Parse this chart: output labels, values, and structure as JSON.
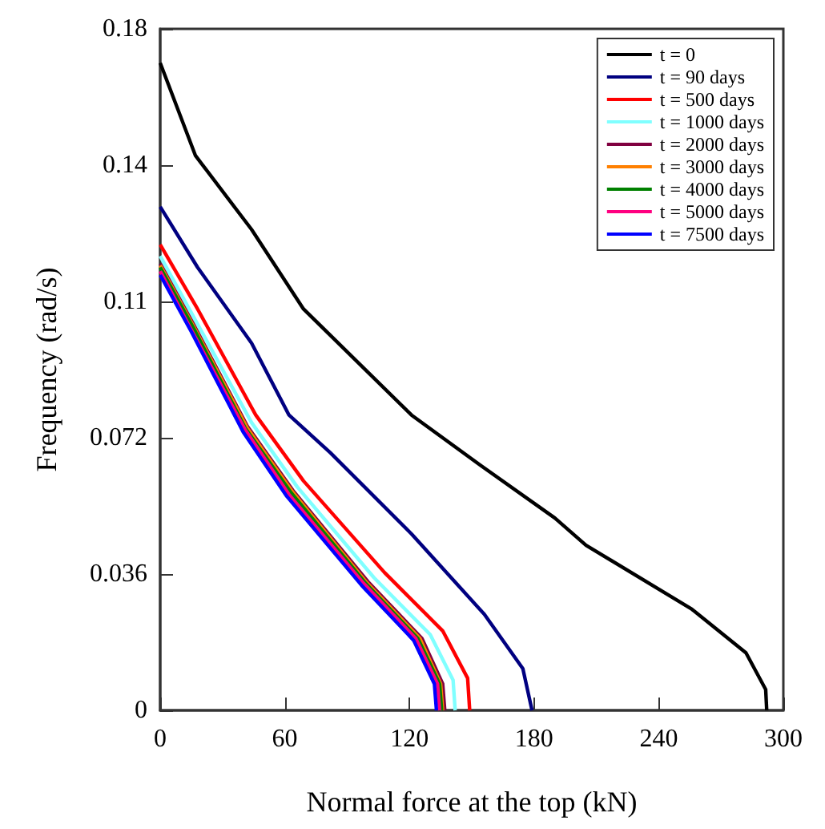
{
  "chart_data": {
    "type": "line",
    "xlabel": "Normal force at the top (kN)",
    "ylabel": "Frequency (rad/s)",
    "xlim": [
      0,
      300
    ],
    "xticks": [
      0,
      60,
      120,
      180,
      240,
      300
    ],
    "ylim": [
      0,
      0.18
    ],
    "yticks": [
      0,
      0.036,
      0.072,
      {
        "value": 0.108,
        "label": "0.11"
      },
      {
        "value": 0.144,
        "label": "0.14"
      },
      0.18
    ],
    "grid": false,
    "legend": "top right",
    "marker": "none",
    "line_style": "solid",
    "series": [
      {
        "name": "t = 0",
        "color": "#000000",
        "x": [
          0,
          17,
          44,
          69,
          121,
          154,
          190,
          205,
          256,
          282,
          291.5,
          292
        ],
        "values": [
          0.171,
          0.1465,
          0.127,
          0.106,
          0.078,
          0.0648,
          0.0508,
          0.0436,
          0.0267,
          0.0152,
          0.0055,
          0
        ]
      },
      {
        "name": "t = 90 days",
        "color": "#000080",
        "x": [
          0,
          18,
          44,
          62,
          82,
          121,
          156,
          174.6,
          179
        ],
        "values": [
          0.133,
          0.117,
          0.097,
          0.078,
          0.068,
          0.0466,
          0.0254,
          0.011,
          0
        ]
      },
      {
        "name": "t = 500 days",
        "color": "#ff0000",
        "x": [
          0,
          18,
          46,
          69,
          108,
          136,
          148,
          149
        ],
        "values": [
          0.123,
          0.106,
          0.078,
          0.0606,
          0.0364,
          0.021,
          0.0085,
          0
        ]
      },
      {
        "name": "t = 1000 days",
        "color": "#80ffff",
        "x": [
          0,
          17,
          44,
          66,
          103,
          130,
          141,
          142
        ],
        "values": [
          0.12,
          0.103,
          0.076,
          0.059,
          0.035,
          0.02,
          0.008,
          0
        ]
      },
      {
        "name": "t = 2000 days",
        "color": "#800040",
        "x": [
          0,
          16,
          42,
          64,
          100,
          126,
          136,
          137
        ],
        "values": [
          0.118,
          0.102,
          0.075,
          0.058,
          0.034,
          0.019,
          0.007,
          0
        ]
      },
      {
        "name": "t = 3000 days",
        "color": "#ff8000",
        "x": [
          0,
          16,
          42,
          64,
          99,
          125,
          135,
          136
        ],
        "values": [
          0.1175,
          0.1015,
          0.0745,
          0.0575,
          0.034,
          0.019,
          0.007,
          0
        ]
      },
      {
        "name": "t = 4000 days",
        "color": "#008000",
        "x": [
          0,
          16,
          41,
          63,
          99,
          124,
          134.5,
          135.5
        ],
        "values": [
          0.117,
          0.101,
          0.0745,
          0.0575,
          0.0335,
          0.019,
          0.007,
          0
        ]
      },
      {
        "name": "t = 5000 days",
        "color": "#ff0080",
        "x": [
          0,
          15,
          41,
          62,
          98,
          123,
          133.5,
          134.5
        ],
        "values": [
          0.116,
          0.1005,
          0.074,
          0.057,
          0.0335,
          0.019,
          0.007,
          0
        ]
      },
      {
        "name": "t = 7500 days",
        "color": "#0000ff",
        "x": [
          0,
          15,
          40,
          61,
          97,
          122,
          132,
          133
        ],
        "values": [
          0.115,
          0.1,
          0.0735,
          0.0565,
          0.033,
          0.0185,
          0.007,
          0
        ]
      }
    ]
  }
}
